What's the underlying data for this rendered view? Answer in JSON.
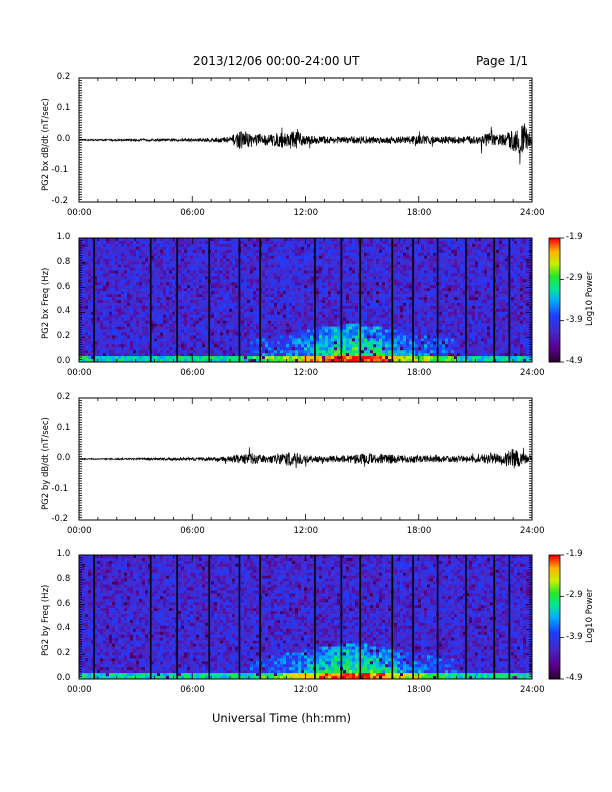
{
  "header": {
    "title": "2013/12/06  00:00-24:00 UT",
    "page": "Page 1/1"
  },
  "footer": {
    "xlabel": "Universal Time (hh:mm)"
  },
  "chart_data": [
    {
      "type": "line",
      "panel": "PG2 bx dB/dt",
      "ylabel": "PG2 bx dB/dt (nT/sec)",
      "ylim": [
        -0.2,
        0.2
      ],
      "yticks": [
        "0.2",
        "0.1",
        "0.0",
        "-0.1",
        "-0.2"
      ],
      "xlim": [
        0,
        24
      ],
      "xticks": [
        "00:00",
        "06:00",
        "12:00",
        "18:00",
        "24:00"
      ],
      "series": [
        {
          "x": [
            0,
            1,
            2,
            3,
            4,
            5,
            6,
            7,
            8,
            8.5,
            9,
            10,
            11,
            11.5,
            12,
            13,
            14,
            15,
            16,
            17,
            18,
            19,
            20,
            21,
            21.5,
            22,
            22.5,
            23,
            23.5,
            24
          ],
          "envelope": [
            0.004,
            0.004,
            0.005,
            0.006,
            0.006,
            0.007,
            0.008,
            0.012,
            0.018,
            0.05,
            0.04,
            0.03,
            0.045,
            0.05,
            0.025,
            0.02,
            0.018,
            0.022,
            0.018,
            0.02,
            0.025,
            0.02,
            0.02,
            0.022,
            0.04,
            0.035,
            0.03,
            0.06,
            0.09,
            0.02
          ]
        }
      ],
      "grid": false
    },
    {
      "type": "heatmap",
      "panel": "PG2 bx spectrogram",
      "ylabel": "PG2 bx Freq (Hz)",
      "ylim": [
        0.0,
        1.0
      ],
      "yticks": [
        "1.0",
        "0.8",
        "0.6",
        "0.4",
        "0.2",
        "0.0"
      ],
      "xlim": [
        0,
        24
      ],
      "xticks": [
        "00:00",
        "06:00",
        "12:00",
        "18:00",
        "24:00"
      ],
      "colorbar": {
        "label": "Log10 Power",
        "range": [
          -4.9,
          -1.9
        ],
        "ticks": [
          "-1.9",
          "-2.9",
          "-3.9",
          "-4.9"
        ]
      },
      "enhanced_band": {
        "x_hours": [
          9,
          20
        ],
        "peak_hour": 14.5,
        "peak_freq_hz": 0.3
      },
      "dark_lines_hours": [
        0.8,
        3.8,
        5.2,
        6.9,
        8.5,
        9.6,
        12.5,
        13.9,
        14.9,
        16.6,
        17.7,
        19.0,
        20.5,
        22.0,
        22.8
      ]
    },
    {
      "type": "line",
      "panel": "PG2 by dB/dt",
      "ylabel": "PG2 by dB/dt (nT/sec)",
      "ylim": [
        -0.2,
        0.2
      ],
      "yticks": [
        "0.2",
        "0.1",
        "0.0",
        "-0.1",
        "-0.2"
      ],
      "xlim": [
        0,
        24
      ],
      "xticks": [
        "00:00",
        "06:00",
        "12:00",
        "18:00",
        "24:00"
      ],
      "series": [
        {
          "x": [
            0,
            1,
            2,
            3,
            4,
            5,
            6,
            7,
            8,
            8.5,
            9,
            10,
            11,
            11.5,
            12,
            13,
            14,
            15,
            16,
            17,
            18,
            19,
            20,
            21,
            21.5,
            22,
            22.5,
            23,
            23.5,
            24
          ],
          "envelope": [
            0.003,
            0.003,
            0.004,
            0.005,
            0.006,
            0.007,
            0.008,
            0.01,
            0.015,
            0.025,
            0.03,
            0.02,
            0.035,
            0.04,
            0.02,
            0.018,
            0.02,
            0.03,
            0.028,
            0.022,
            0.02,
            0.02,
            0.018,
            0.02,
            0.025,
            0.03,
            0.03,
            0.06,
            0.03,
            0.015
          ]
        }
      ],
      "grid": false
    },
    {
      "type": "heatmap",
      "panel": "PG2 by spectrogram",
      "ylabel": "PG2 by Freq (Hz)",
      "ylim": [
        0.0,
        1.0
      ],
      "yticks": [
        "1.0",
        "0.8",
        "0.6",
        "0.4",
        "0.2",
        "0.0"
      ],
      "xlim": [
        0,
        24
      ],
      "xticks": [
        "00:00",
        "06:00",
        "12:00",
        "18:00",
        "24:00"
      ],
      "colorbar": {
        "label": "Log10 Power",
        "range": [
          -4.9,
          -1.9
        ],
        "ticks": [
          "-1.9",
          "-2.9",
          "-3.9",
          "-4.9"
        ]
      },
      "enhanced_band": {
        "x_hours": [
          9,
          20
        ],
        "peak_hour": 14.5,
        "peak_freq_hz": 0.28
      },
      "dark_lines_hours": [
        0.8,
        3.8,
        5.2,
        6.9,
        8.5,
        9.6,
        12.5,
        13.9,
        14.9,
        16.6,
        17.7,
        19.0,
        20.5,
        22.0,
        22.8
      ]
    }
  ]
}
